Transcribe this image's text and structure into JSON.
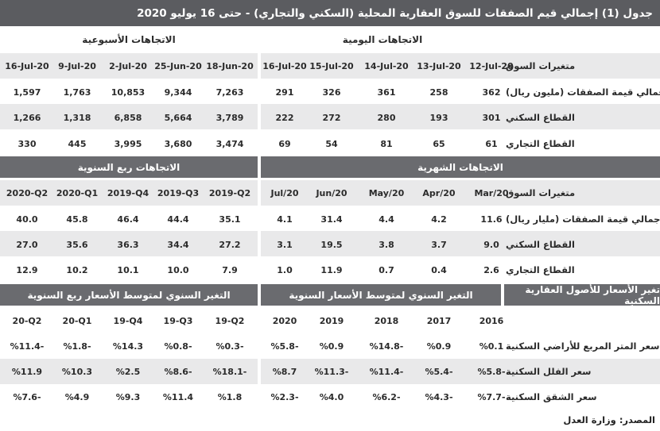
{
  "title": "جدول (1) إجمالي قيم الصفقات للسوق العقارية المحلية (السكني والتجاري) - حتى 16 يوليو 2020",
  "section1": {
    "weekly_header": "الاتجاهات الأسبوعية",
    "daily_header": "الاتجاهات اليومية",
    "row_header": "متغيرات السوق",
    "weekly_cols": [
      "16-Jul-20",
      "9-Jul-20",
      "2-Jul-20",
      "25-Jun-20",
      "18-Jun-20"
    ],
    "daily_cols": [
      "16-Jul-20",
      "15-Jul-20",
      "14-Jul-20",
      "13-Jul-20",
      "12-Jul-20"
    ],
    "rows": [
      {
        "label": "إجمالي قيمة الصفقات (مليون ريال)",
        "weekly": [
          "1,597",
          "1,763",
          "10,853",
          "9,344",
          "7,263"
        ],
        "daily": [
          "291",
          "326",
          "361",
          "258",
          "362"
        ]
      },
      {
        "label": "القطاع السكني",
        "weekly": [
          "1,266",
          "1,318",
          "6,858",
          "5,664",
          "3,789"
        ],
        "daily": [
          "222",
          "272",
          "280",
          "193",
          "301"
        ]
      },
      {
        "label": "القطاع التجاري",
        "weekly": [
          "330",
          "445",
          "3,995",
          "3,680",
          "3,474"
        ],
        "daily": [
          "69",
          "54",
          "81",
          "65",
          "61"
        ]
      }
    ]
  },
  "section2": {
    "quarterly_header": "الاتجاهات ربع السنوية",
    "monthly_header": "الاتجاهات الشهرية",
    "row_header": "متغيرات السوق",
    "quarterly_cols": [
      "2020-Q2",
      "2020-Q1",
      "2019-Q4",
      "2019-Q3",
      "2019-Q2"
    ],
    "monthly_cols": [
      "Jul/20",
      "Jun/20",
      "May/20",
      "Apr/20",
      "Mar/20"
    ],
    "rows": [
      {
        "label": "إجمالي قيمة الصفقات (مليار ريال)",
        "quarterly": [
          "40.0",
          "45.8",
          "46.4",
          "44.4",
          "35.1"
        ],
        "monthly": [
          "4.1",
          "31.4",
          "4.4",
          "4.2",
          "11.6"
        ]
      },
      {
        "label": "القطاع السكني",
        "quarterly": [
          "27.0",
          "35.6",
          "36.3",
          "34.4",
          "27.2"
        ],
        "monthly": [
          "3.1",
          "19.5",
          "3.8",
          "3.7",
          "9.0"
        ]
      },
      {
        "label": "القطاع التجاري",
        "quarterly": [
          "12.9",
          "10.2",
          "10.1",
          "10.0",
          "7.9"
        ],
        "monthly": [
          "1.0",
          "11.9",
          "0.7",
          "0.4",
          "2.6"
        ]
      }
    ]
  },
  "section3": {
    "quarterly_header": "التغير السنوي لمتوسط الأسعار ربع السنوية",
    "annual_header": "التغير السنوي لمتوسط الأسعار السنوية",
    "row_header": "تغير الأسعار للأصول العقارية السكنية",
    "quarterly_cols": [
      "20-Q2",
      "20-Q1",
      "19-Q4",
      "19-Q3",
      "19-Q2"
    ],
    "annual_cols": [
      "2020",
      "2019",
      "2018",
      "2017",
      "2016"
    ],
    "rows": [
      {
        "label": "سعر المتر المربع للأراضي السكنية",
        "quarterly": [
          "%11.4-",
          "%1.8-",
          "%14.3",
          "%0.8-",
          "%0.3-"
        ],
        "annual": [
          "%5.8-",
          "%0.9",
          "%14.8-",
          "%0.9",
          "%0.1"
        ]
      },
      {
        "label": "سعر الفلل السكنية",
        "quarterly": [
          "%11.9",
          "%10.3",
          "%2.5",
          "%8.6-",
          "%18.1-"
        ],
        "annual": [
          "%8.7",
          "%11.3-",
          "%11.4-",
          "%5.4-",
          "%5.8-"
        ]
      },
      {
        "label": "سعر الشقق السكنية",
        "quarterly": [
          "%7.6-",
          "%4.9",
          "%9.3",
          "%11.4",
          "%1.8"
        ],
        "annual": [
          "%2.3-",
          "%4.0",
          "%6.2-",
          "%4.3-",
          "%7.7-"
        ]
      }
    ]
  },
  "source": "المصدر: وزارة العدل",
  "colors": {
    "header_bg": "#6a6b6f",
    "title_bg": "#5b5c60",
    "row_alt": "#e9e9ea"
  }
}
